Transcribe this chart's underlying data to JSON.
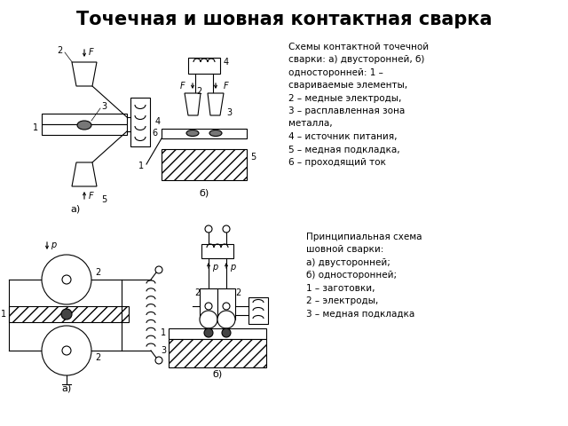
{
  "title": "Точечная и шовная контактная сварка",
  "title_fontsize": 15,
  "title_fontweight": "bold",
  "bg_color": "#ffffff",
  "line_color": "#000000",
  "text_color": "#000000",
  "top_right_text": "Схемы контактной точечной\nсварки: а) двусторонней, б)\nодносторонней: 1 –\nсвариваемые элементы,\n2 – медные электроды,\n3 – расплавленная зона\nметалла,\n4 – источник питания,\n5 – медная подкладка,\n6 – проходящий ток",
  "bottom_right_text": "Принципиальная схема\nшовной сварки:\nа) двусторонней;\nб) односторонней;\n1 – заготовки,\n2 – электроды,\n3 – медная подкладка",
  "label_a_top": "а)",
  "label_b_top": "б)",
  "label_a_bottom": "а)",
  "label_b_bottom": "б)"
}
